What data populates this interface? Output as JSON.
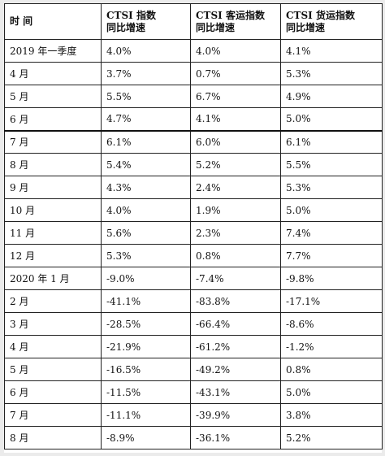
{
  "table": {
    "headers": [
      "时 间",
      "CTSI 指数\n同比增速",
      "CTSI 客运指数\n同比增速",
      "CTSI 货运指数\n同比增速"
    ],
    "rows": [
      [
        "2019 年一季度",
        "4.0%",
        "4.0%",
        "4.1%"
      ],
      [
        "4 月",
        "3.7%",
        "0.7%",
        "5.3%"
      ],
      [
        "5 月",
        "5.5%",
        "6.7%",
        "4.9%"
      ],
      [
        "6 月",
        "4.7%",
        "4.1%",
        "5.0%"
      ],
      [
        "7 月",
        "6.1%",
        "6.0%",
        "6.1%"
      ],
      [
        "8 月",
        "5.4%",
        "5.2%",
        "5.5%"
      ],
      [
        "9 月",
        "4.3%",
        "2.4%",
        "5.3%"
      ],
      [
        "10 月",
        "4.0%",
        "1.9%",
        "5.0%"
      ],
      [
        "11 月",
        "5.6%",
        "2.3%",
        "7.4%"
      ],
      [
        "12 月",
        "5.3%",
        "0.8%",
        "7.7%"
      ],
      [
        "2020 年 1 月",
        "-9.0%",
        "-7.4%",
        "-9.8%"
      ],
      [
        "2 月",
        "-41.1%",
        "-83.8%",
        "-17.1%"
      ],
      [
        "3 月",
        "-28.5%",
        "-66.4%",
        "-8.6%"
      ],
      [
        "4 月",
        "-21.9%",
        "-61.2%",
        "-1.2%"
      ],
      [
        "5 月",
        "-16.5%",
        "-49.2%",
        "0.8%"
      ],
      [
        "6 月",
        "-11.5%",
        "-43.1%",
        "5.0%"
      ],
      [
        "7 月",
        "-11.1%",
        "-39.9%",
        "3.8%"
      ],
      [
        "8 月",
        "-8.9%",
        "-36.1%",
        "5.2%"
      ]
    ]
  }
}
